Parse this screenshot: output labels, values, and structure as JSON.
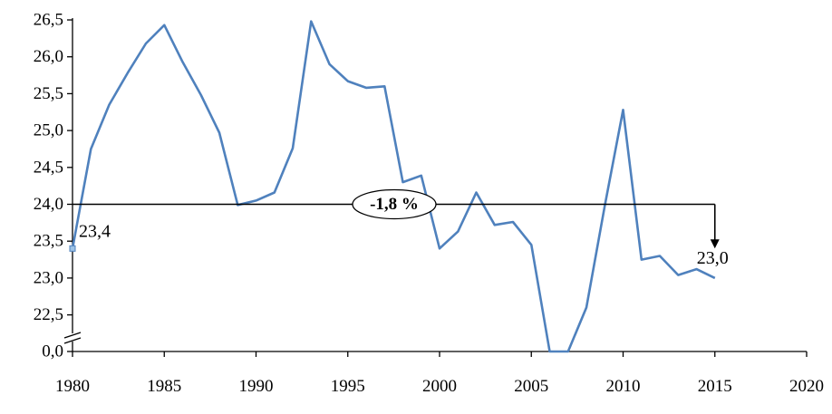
{
  "chart_data": {
    "type": "line",
    "title": "",
    "xlabel": "",
    "ylabel": "",
    "xlim": [
      1980,
      2020
    ],
    "x_ticks": [
      "1980",
      "1985",
      "1990",
      "1995",
      "2000",
      "2005",
      "2010",
      "2015",
      "2020"
    ],
    "y_ticks": [
      "0,0",
      "22,5",
      "23,0",
      "23,5",
      "24,0",
      "24,5",
      "25,0",
      "25,5",
      "26,0",
      "26,5"
    ],
    "y_axis_break": true,
    "grid": false,
    "series": [
      {
        "color": "#4F81BD",
        "x": [
          1980,
          1981,
          1982,
          1983,
          1984,
          1985,
          1986,
          1987,
          1988,
          1989,
          1990,
          1991,
          1992,
          1993,
          1994,
          1995,
          1996,
          1997,
          1998,
          1999,
          2000,
          2001,
          2002,
          2003,
          2004,
          2005,
          2006,
          2007,
          2008,
          2009,
          2010,
          2011,
          2012,
          2013,
          2014,
          2015
        ],
        "values": [
          23.4,
          24.75,
          25.35,
          25.78,
          26.18,
          26.43,
          25.93,
          25.48,
          24.97,
          23.99,
          24.05,
          24.16,
          24.76,
          26.48,
          25.9,
          25.67,
          25.58,
          25.6,
          24.3,
          24.39,
          23.4,
          23.63,
          24.16,
          23.72,
          23.76,
          23.45,
          22.23,
          22.19,
          22.6,
          23.98,
          25.28,
          23.25,
          23.3,
          23.04,
          23.12,
          23.0
        ]
      }
    ],
    "annotations": {
      "start_label": "23,4",
      "end_label": "23,0",
      "change_label": "-1,8 %",
      "reference_value": 24.0,
      "arrow_from_x": 1980,
      "arrow_to_x": 2015,
      "arrow_target_value": 23.5
    }
  }
}
